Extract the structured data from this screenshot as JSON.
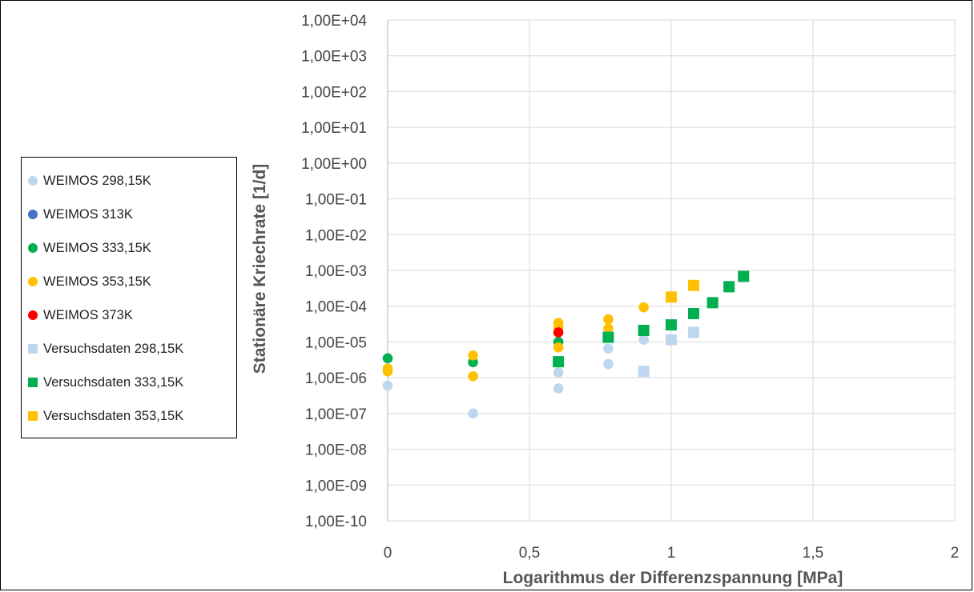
{
  "chart_data": {
    "type": "scatter",
    "title": "",
    "xlabel": "Logarithmus der Differenzspannung [MPa]",
    "ylabel": "Stationäre Kriechrate [1/d]",
    "xlim": [
      0,
      2
    ],
    "ylim": [
      1e-10,
      10000.0
    ],
    "y_scale": "log",
    "grid": true,
    "legend_position": "left",
    "x_tick_labels": [
      "0",
      "0,5",
      "1",
      "1,5",
      "2"
    ],
    "x_ticks": [
      0,
      0.5,
      1,
      1.5,
      2
    ],
    "y_tick_labels": [
      "1,00E+04",
      "1,00E+03",
      "1,00E+02",
      "1,00E+01",
      "1,00E+00",
      "1,00E-01",
      "1,00E-02",
      "1,00E-03",
      "1,00E-04",
      "1,00E-05",
      "1,00E-06",
      "1,00E-07",
      "1,00E-08",
      "1,00E-09",
      "1,00E-10"
    ],
    "y_ticks": [
      10000.0,
      1000.0,
      100.0,
      10.0,
      1,
      0.1,
      0.01,
      0.001,
      0.0001,
      1e-05,
      1e-06,
      1e-07,
      1e-08,
      1e-09,
      1e-10
    ],
    "series": [
      {
        "name": "WEIMOS 298,15K",
        "marker": "circle",
        "color": "#bdd7ee",
        "points": [
          [
            0,
            6e-07
          ],
          [
            0.301,
            1e-07
          ],
          [
            0.602,
            5e-07
          ],
          [
            0.602,
            1.4e-06
          ],
          [
            0.778,
            2.4e-06
          ],
          [
            0.778,
            6.5e-06
          ],
          [
            0.903,
            1.15e-05
          ]
        ]
      },
      {
        "name": "WEIMOS 313K",
        "marker": "circle",
        "color": "#4472c4",
        "points": []
      },
      {
        "name": "WEIMOS 333,15K",
        "marker": "circle",
        "color": "#00b050",
        "points": [
          [
            0,
            3.5e-06
          ],
          [
            0.301,
            2.7e-06
          ],
          [
            0.602,
            1e-05
          ]
        ]
      },
      {
        "name": "WEIMOS 353,15K",
        "marker": "circle",
        "color": "#ffc000",
        "points": [
          [
            0,
            1.5e-06
          ],
          [
            0,
            1.8e-06
          ],
          [
            0.301,
            4.2e-06
          ],
          [
            0.301,
            1.1e-06
          ],
          [
            0.602,
            3.4e-05
          ],
          [
            0.602,
            2.5e-05
          ],
          [
            0.602,
            7e-06
          ],
          [
            0.778,
            4.3e-05
          ],
          [
            0.778,
            2.4e-05
          ],
          [
            0.903,
            9.3e-05
          ]
        ]
      },
      {
        "name": "WEIMOS 373K",
        "marker": "circle",
        "color": "#ff0000",
        "points": [
          [
            0.602,
            1.85e-05
          ]
        ]
      },
      {
        "name": "Versuchsdaten 298,15K",
        "marker": "square",
        "color": "#bdd7ee",
        "points": [
          [
            0.903,
            1.5e-06
          ],
          [
            1.0,
            1.15e-05
          ],
          [
            1.079,
            1.85e-05
          ]
        ]
      },
      {
        "name": "Versuchsdaten 333,15K",
        "marker": "square",
        "color": "#00b050",
        "points": [
          [
            0.602,
            2.8e-06
          ],
          [
            0.778,
            1.35e-05
          ],
          [
            0.903,
            2.1e-05
          ],
          [
            1.0,
            3e-05
          ],
          [
            1.079,
            6.2e-05
          ],
          [
            1.146,
            0.000125
          ],
          [
            1.204,
            0.00035
          ],
          [
            1.255,
            0.00068
          ]
        ]
      },
      {
        "name": "Versuchsdaten 353,15K",
        "marker": "square",
        "color": "#ffc000",
        "points": [
          [
            1.0,
            0.00018
          ],
          [
            1.079,
            0.00038
          ]
        ]
      }
    ]
  }
}
